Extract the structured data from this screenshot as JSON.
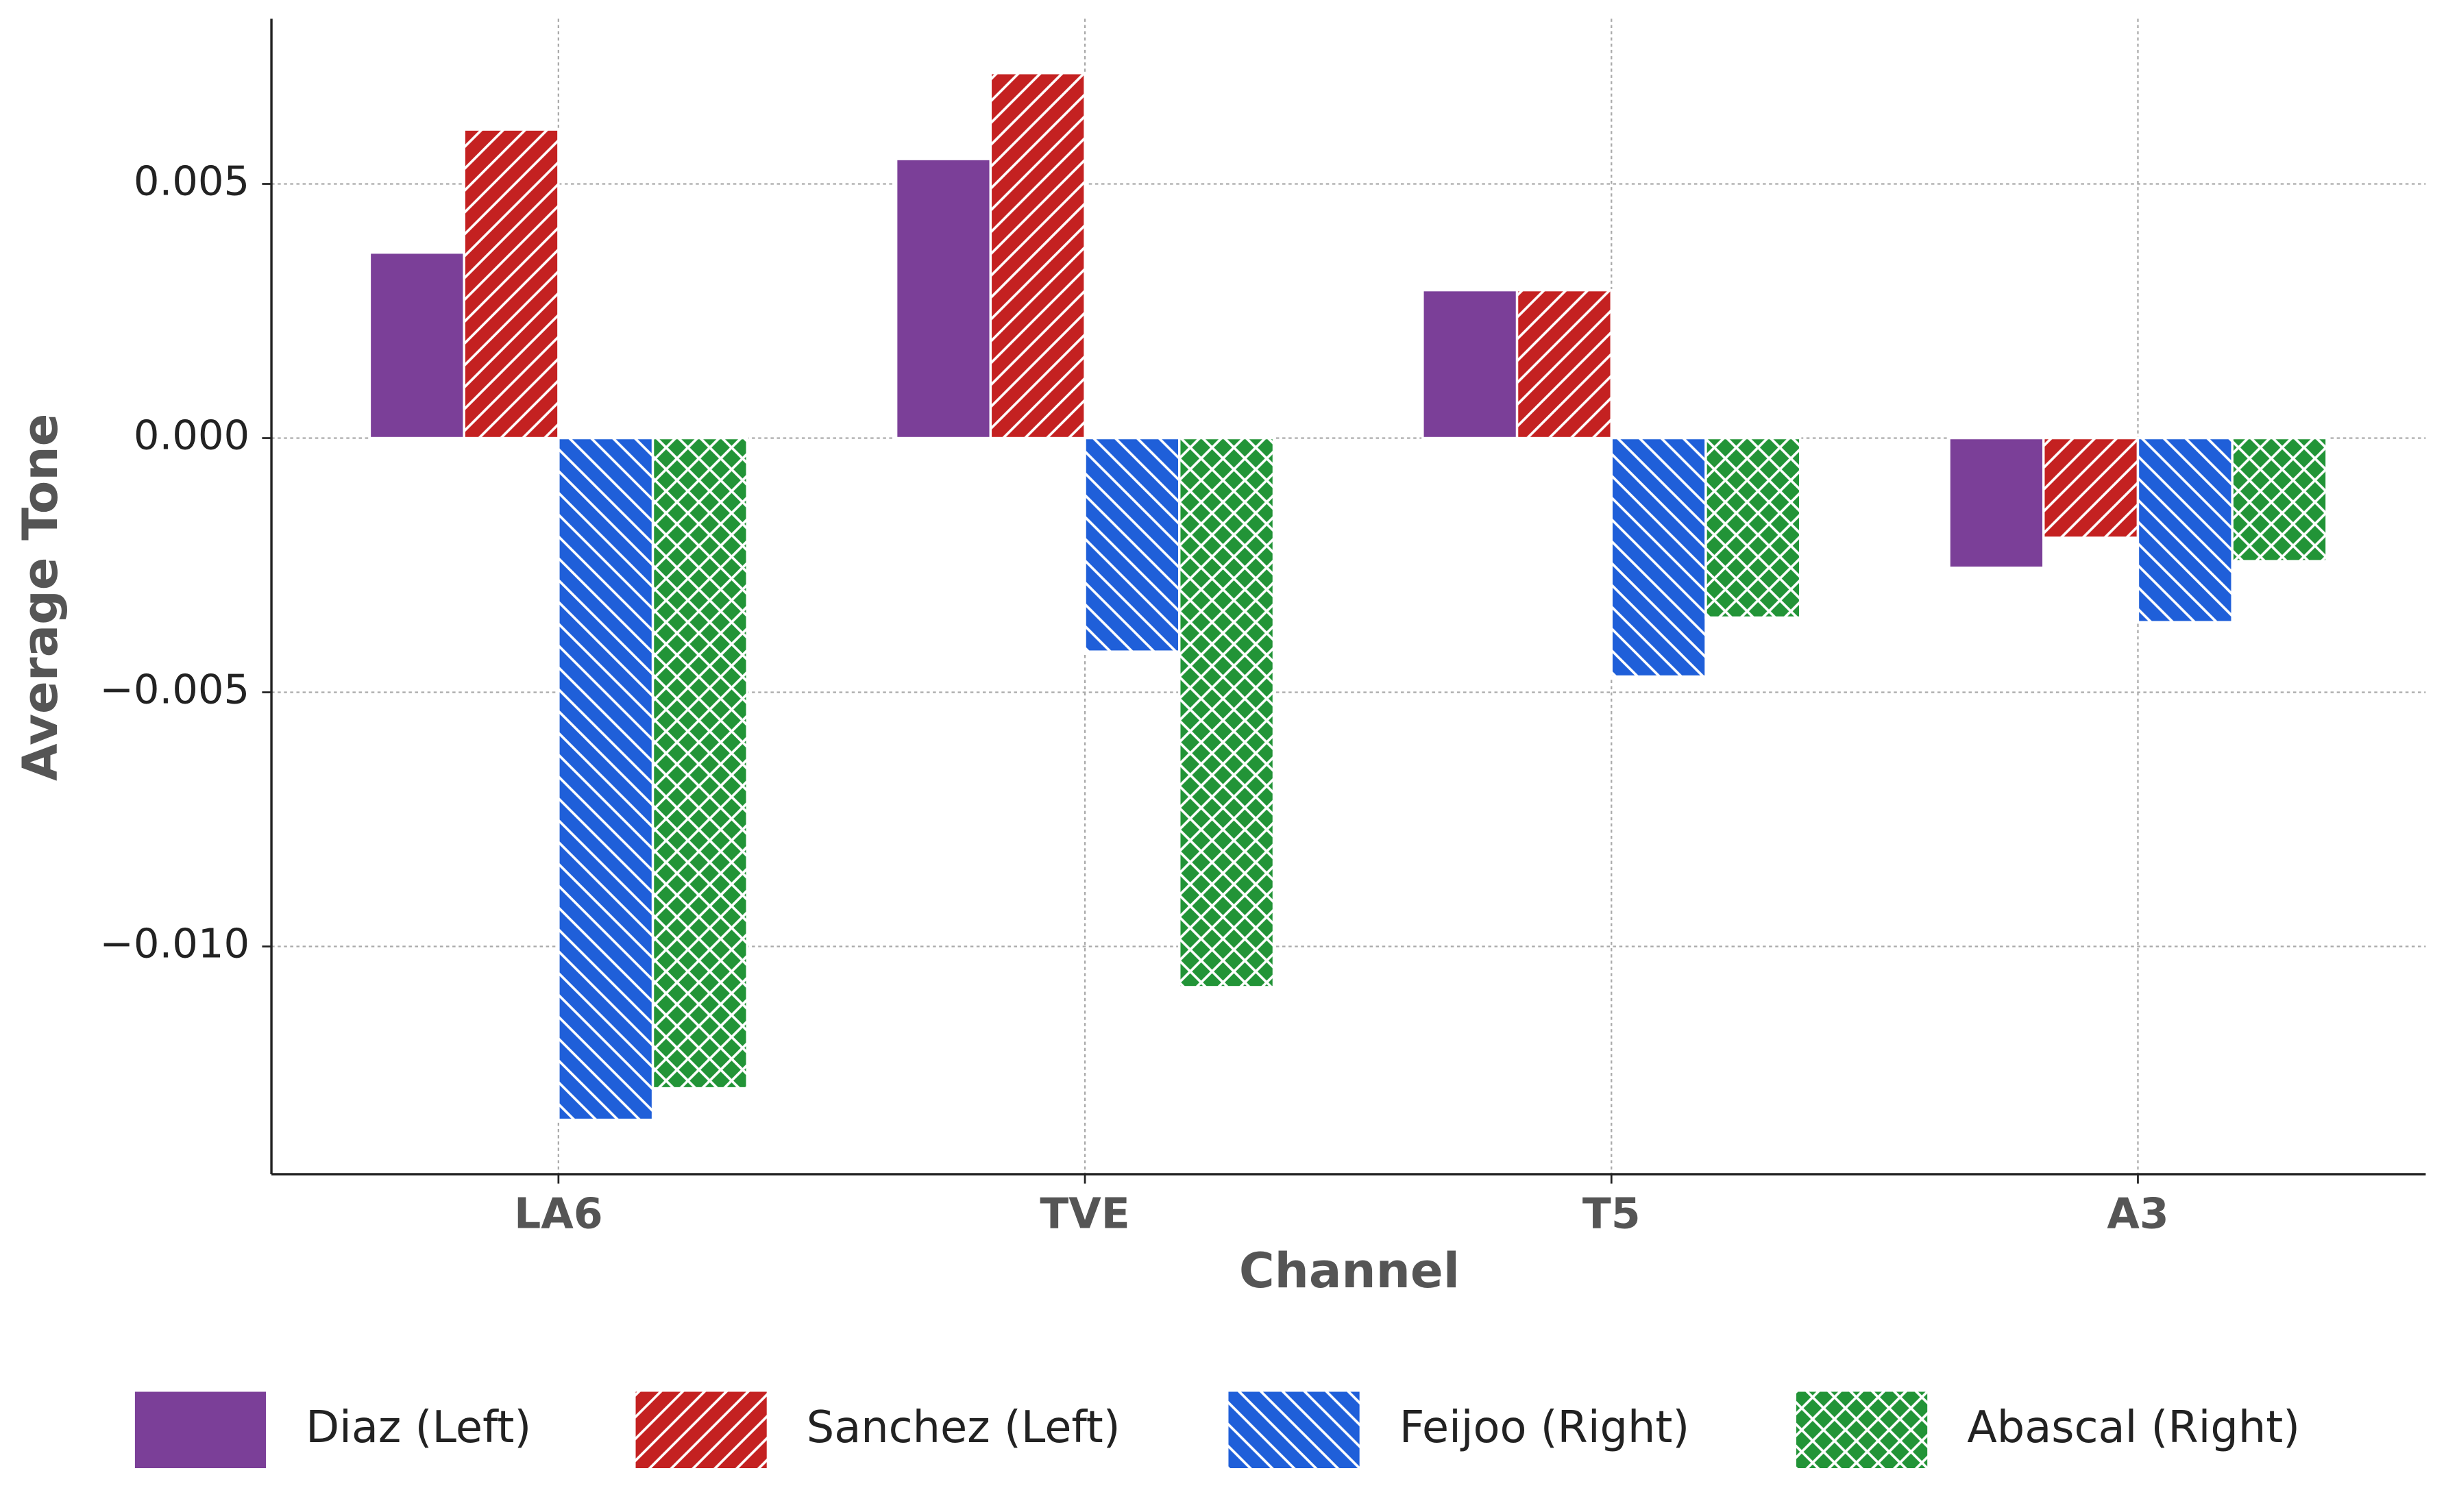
{
  "chart_data": {
    "type": "bar",
    "x_label": "Channel",
    "y_label": "Average Tone",
    "categories": [
      "LA6",
      "TVE",
      "T5",
      "A3"
    ],
    "series": [
      {
        "name": "Diaz (Left)",
        "color": "#7b3f98",
        "hatch": "none",
        "values": [
          0.00365,
          0.00549,
          0.00291,
          -0.00255
        ]
      },
      {
        "name": "Sanchez (Left)",
        "color": "#c42121",
        "hatch": "forward",
        "values": [
          0.00607,
          0.00718,
          0.00291,
          -0.00196
        ]
      },
      {
        "name": "Feijoo (Right)",
        "color": "#1f5fd9",
        "hatch": "back",
        "values": [
          -0.01341,
          -0.0042,
          -0.00469,
          -0.00362
        ]
      },
      {
        "name": "Abascal (Right)",
        "color": "#229437",
        "hatch": "cross",
        "values": [
          -0.01279,
          -0.0108,
          -0.00353,
          -0.00242
        ]
      }
    ],
    "ylim": [
      -0.01448,
      0.00825
    ],
    "yticks": [
      {
        "value": -0.01,
        "label": "−0.010"
      },
      {
        "value": -0.005,
        "label": "−0.005"
      },
      {
        "value": 0,
        "label": "0.000"
      },
      0.005
    ],
    "grid": true,
    "legend": "bottom"
  }
}
